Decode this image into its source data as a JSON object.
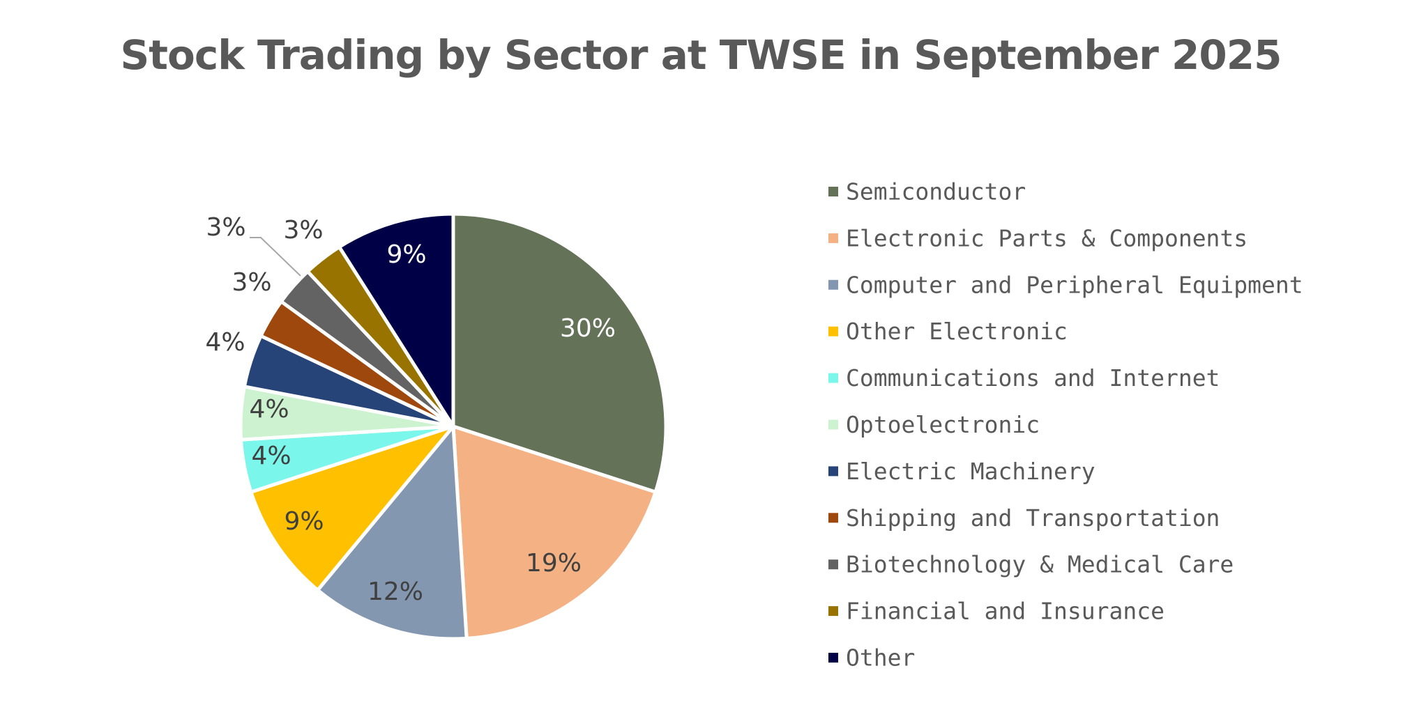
{
  "chart_data": {
    "type": "pie",
    "title": "Stock Trading by Sector at TWSE in September 2025",
    "legend_position": "right",
    "start": "top, clockwise",
    "slices": [
      {
        "name": "Semiconductor",
        "value": 30,
        "label": "30%",
        "color": "#647358",
        "label_color": "#ffffff"
      },
      {
        "name": "Electronic Parts & Components",
        "value": 19,
        "label": "19%",
        "color": "#F4B183",
        "label_color": "#404040"
      },
      {
        "name": "Computer and Peripheral Equipment",
        "value": 12,
        "label": "12%",
        "color": "#8497B0",
        "label_color": "#404040"
      },
      {
        "name": "Other Electronic",
        "value": 9,
        "label": "9%",
        "color": "#FFC000",
        "label_color": "#404040"
      },
      {
        "name": "Communications and Internet",
        "value": 4,
        "label": "4%",
        "color": "#7AF7EA",
        "label_color": "#404040"
      },
      {
        "name": "Optoelectronic",
        "value": 4,
        "label": "4%",
        "color": "#CCF2D0",
        "label_color": "#404040"
      },
      {
        "name": "Electric Machinery",
        "value": 4,
        "label": "4%",
        "color": "#264478",
        "label_color": "#404040"
      },
      {
        "name": "Shipping and Transportation",
        "value": 3,
        "label": "3%",
        "color": "#9E480E",
        "label_color": "#404040"
      },
      {
        "name": "Biotechnology & Medical Care",
        "value": 3,
        "label": "3%",
        "color": "#636363",
        "label_color": "#404040"
      },
      {
        "name": "Financial and Insurance",
        "value": 3,
        "label": "3%",
        "color": "#997300",
        "label_color": "#404040"
      },
      {
        "name": "Other",
        "value": 9,
        "label": "9%",
        "color": "#000046",
        "label_color": "#ffffff"
      }
    ]
  }
}
